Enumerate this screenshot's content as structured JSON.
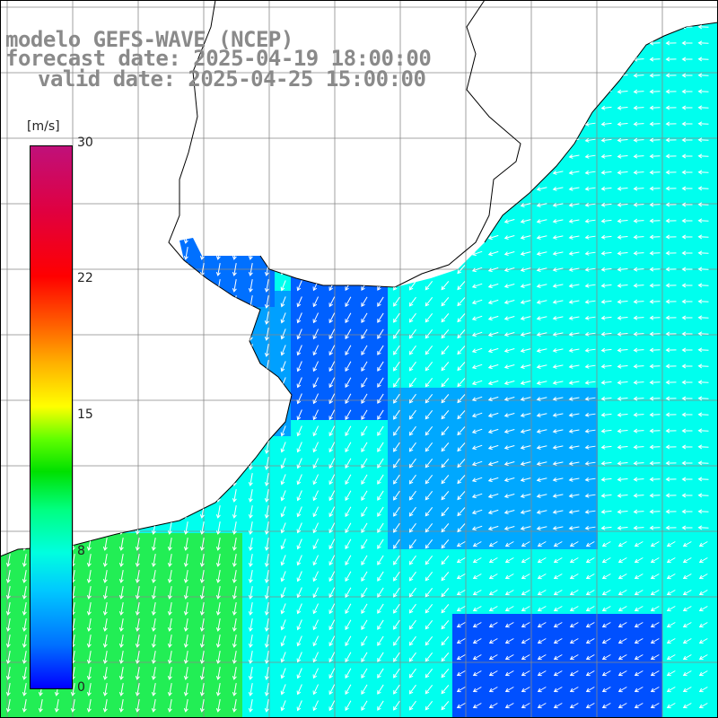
{
  "title": {
    "line1": "modelo GEFS-WAVE (NCEP)",
    "line2": "forecast date: 2025-04-19 18:00:00",
    "line3": "valid date: 2025-04-25 15:00:00"
  },
  "colorbar": {
    "unit": "[m/s]",
    "ticks": [
      "30",
      "22",
      "15",
      "8",
      "0"
    ],
    "tick_values": [
      30,
      22,
      15,
      8,
      0
    ],
    "colors": [
      "#0000ff",
      "#00c8ff",
      "#00ffe0",
      "#00e000",
      "#ffff00",
      "#ff6000",
      "#ff0000",
      "#c0107a"
    ]
  },
  "map": {
    "land_color": "#ffffff",
    "coast_color": "#000000",
    "grid": true,
    "arrow_color": "#ffffff"
  }
}
